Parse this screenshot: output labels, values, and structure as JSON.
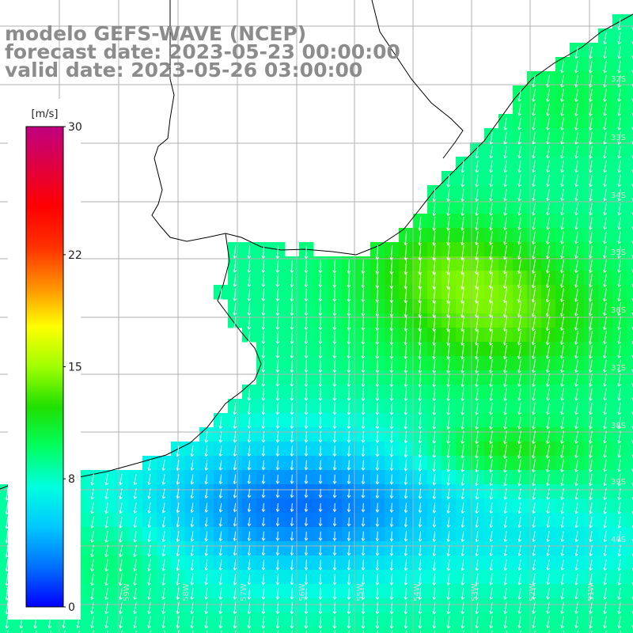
{
  "title": {
    "model": "modelo GEFS-WAVE (NCEP)",
    "forecast": "forecast date: 2023-05-23 00:00:00",
    "valid": "valid date: 2023-05-26 03:00:00"
  },
  "colorbar": {
    "unit": "[m/s]",
    "ticks": [
      "30",
      "22",
      "15",
      "8",
      "0"
    ],
    "tick_values": [
      30,
      22,
      15,
      8,
      0
    ],
    "range": [
      0,
      30
    ],
    "colors": [
      "#0000ff",
      "#0070ff",
      "#00c8ff",
      "#00ffe0",
      "#00ff60",
      "#20e000",
      "#a0ff00",
      "#ffff00",
      "#ff9000",
      "#ff3000",
      "#ff0000",
      "#e00040",
      "#c00080"
    ]
  },
  "latitude_labels": [
    "32S",
    "33S",
    "34S",
    "35S",
    "36S",
    "37S",
    "38S",
    "39S",
    "40S"
  ],
  "longitude_labels": [
    "61W",
    "60W",
    "59W",
    "58W",
    "57W",
    "56W",
    "55W",
    "54W",
    "53W",
    "52W",
    "51W"
  ],
  "map": {
    "variable": "wind speed and direction",
    "land_color": "#ffffff",
    "grid_color": "#b0b0b0",
    "coast_color": "#000000",
    "vector_color": "#ffffff"
  }
}
